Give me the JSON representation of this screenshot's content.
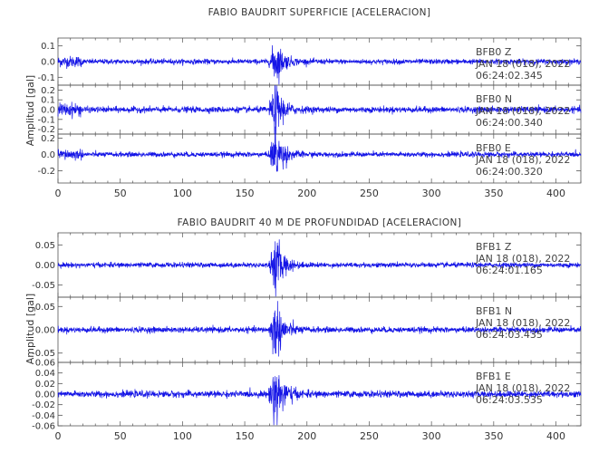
{
  "chart_data": [
    {
      "type": "line",
      "title": "FABIO BAUDRIT SUPERFICIE [ACELERACION]",
      "ylabel": "Amplitud [gal]",
      "xlim": [
        0,
        420
      ],
      "xticks": [
        "0",
        "50",
        "100",
        "150",
        "200",
        "250",
        "300",
        "350",
        "400"
      ],
      "event_time_s": 175,
      "traces": [
        {
          "station": "BFB0",
          "component": "Z",
          "date": "JAN 18 (018), 2022",
          "time": "06:24:02.345",
          "ylim": [
            -0.15,
            0.15
          ],
          "yticks": [
            "0.1",
            "0.0",
            "-0.1"
          ],
          "yvalues": [
            0.1,
            0.0,
            -0.1
          ],
          "peak": 0.12,
          "noise": 0.008
        },
        {
          "station": "BFB0",
          "component": "N",
          "date": "JAN 18 (018), 2022",
          "time": "06:24:00.340",
          "ylim": [
            -0.25,
            0.25
          ],
          "yticks": [
            "0.2",
            "0.1",
            "0.0",
            "-0.1",
            "-0.2"
          ],
          "yvalues": [
            0.2,
            0.1,
            0.0,
            -0.1,
            -0.2
          ],
          "peak": 0.22,
          "noise": 0.015
        },
        {
          "station": "BFB0",
          "component": "E",
          "date": "JAN 18 (018), 2022",
          "time": "06:24:00.320",
          "ylim": [
            -0.35,
            0.25
          ],
          "yticks": [
            "0.2",
            "0.0",
            "-0.2"
          ],
          "yvalues": [
            0.2,
            0.0,
            -0.2
          ],
          "peak": 0.3,
          "noise": 0.015
        }
      ]
    },
    {
      "type": "line",
      "title": "FABIO BAUDRIT 40 M DE PROFUNDIDAD [ACELERACION]",
      "ylabel": "Amplitud [gal]",
      "xlim": [
        0,
        420
      ],
      "xticks": [
        "0",
        "50",
        "100",
        "150",
        "200",
        "250",
        "300",
        "350",
        "400"
      ],
      "event_time_s": 175,
      "traces": [
        {
          "station": "BFB1",
          "component": "Z",
          "date": "JAN 18 (018), 2022",
          "time": "06:24:01.165",
          "ylim": [
            -0.08,
            0.08
          ],
          "yticks": [
            "0.05",
            "0.00",
            "-0.05"
          ],
          "yvalues": [
            0.05,
            0.0,
            -0.05
          ],
          "peak": 0.065,
          "noise": 0.003
        },
        {
          "station": "BFB1",
          "component": "N",
          "date": "JAN 18 (018), 2022",
          "time": "06:24:03.435",
          "ylim": [
            -0.07,
            0.07
          ],
          "yticks": [
            "0.05",
            "0.00",
            "-0.05"
          ],
          "yvalues": [
            0.05,
            0.0,
            -0.05
          ],
          "peak": 0.06,
          "noise": 0.003
        },
        {
          "station": "BFB1",
          "component": "E",
          "date": "JAN 18 (018), 2022",
          "time": "06:24:03.535",
          "ylim": [
            -0.06,
            0.06
          ],
          "yticks": [
            "0.06",
            "0.04",
            "0.02",
            "0.00",
            "-0.02",
            "-0.04",
            "-0.06"
          ],
          "yvalues": [
            0.06,
            0.04,
            0.02,
            0.0,
            -0.02,
            -0.04,
            -0.06
          ],
          "peak": 0.065,
          "noise": 0.003
        }
      ]
    }
  ],
  "colors": {
    "trace": "#1414e6",
    "axes": "#555555",
    "text": "#333333"
  }
}
